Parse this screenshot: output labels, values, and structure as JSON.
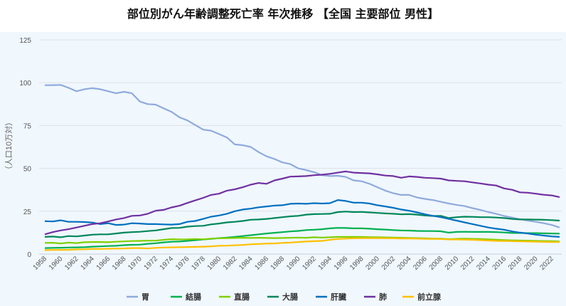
{
  "chart_data": {
    "type": "line",
    "title": "部位別がん年齢調整死亡率 年次推移 【全国 主要部位 男性】",
    "ylabel": "（人口10万対）",
    "xlabel": "",
    "ylim": [
      0,
      125
    ],
    "yticks": [
      0,
      25,
      50,
      75,
      100,
      125
    ],
    "x_start": 1958,
    "x_end": 2023,
    "xtick_labels": [
      "1958",
      "1960",
      "1962",
      "1964",
      "1966",
      "1968",
      "1970",
      "1972",
      "1974",
      "1976",
      "1978",
      "1980",
      "1982",
      "1984",
      "1986",
      "1988",
      "1990",
      "1992",
      "1994",
      "1996",
      "1998",
      "2000",
      "2002",
      "2004",
      "2006",
      "2008",
      "2010",
      "2012",
      "2014",
      "2016",
      "2018",
      "2020",
      "2022"
    ],
    "grid": true,
    "legend_position": "bottom",
    "series": [
      {
        "name": "胃",
        "color": "#8faadc",
        "values": [
          98.5,
          98.6,
          98.7,
          97,
          95,
          96.2,
          96.8,
          96.2,
          95,
          93.8,
          94.7,
          93.8,
          89,
          87.5,
          87.2,
          85,
          83,
          79.8,
          78,
          75.3,
          72.6,
          72,
          70,
          68,
          64,
          63.5,
          62.5,
          59.5,
          57,
          55.5,
          53.5,
          52.5,
          50,
          49,
          47.8,
          46,
          45.5,
          45.7,
          45,
          43,
          42.5,
          41,
          39,
          37,
          35.5,
          34.5,
          34.5,
          33,
          32.2,
          31.5,
          30.5,
          29.5,
          28.7,
          28,
          26.8,
          25.8,
          24.5,
          23.5,
          22.2,
          21.3,
          20.3,
          19.5,
          18.8,
          18,
          17,
          15.5
        ]
      },
      {
        "name": "結腸",
        "color": "#00b050",
        "values": [
          3.5,
          3.6,
          3.7,
          3.8,
          3.9,
          4.0,
          4.3,
          4.5,
          4.7,
          4.8,
          5.2,
          5.4,
          5.5,
          6,
          6.3,
          6.8,
          7.2,
          7.3,
          7.7,
          8.1,
          8.5,
          8.9,
          9.3,
          9.6,
          10,
          10.5,
          11,
          11.5,
          12,
          12.4,
          12.8,
          13.2,
          13.5,
          14,
          14.2,
          14.5,
          15,
          15.3,
          15.2,
          15,
          15,
          14.8,
          14.5,
          14.3,
          14,
          13.8,
          13.7,
          13.5,
          13.4,
          13.4,
          13.3,
          12.5,
          12.9,
          13,
          12.9,
          12.9,
          12.9,
          12.8,
          12.6,
          12.3,
          12.3,
          12.2,
          12.2,
          12.1,
          12,
          11.9
        ]
      },
      {
        "name": "直腸",
        "color": "#7fd000",
        "values": [
          6.5,
          6.6,
          6.2,
          6.7,
          6.4,
          6.9,
          7,
          7,
          6.9,
          7.2,
          7.4,
          7.6,
          7.7,
          7.8,
          7.8,
          8.3,
          8.7,
          8.5,
          8.6,
          8.8,
          8.6,
          9,
          9.2,
          9.3,
          9.4,
          9.5,
          9.4,
          9.5,
          9.4,
          9.3,
          9.4,
          9.5,
          9.6,
          9.5,
          9.8,
          9.6,
          9.8,
          10,
          10,
          10,
          10,
          9.9,
          9.8,
          9.7,
          9.6,
          9.5,
          9.4,
          9.3,
          9.2,
          9,
          9,
          8.7,
          8.9,
          9,
          8.9,
          8.8,
          8.6,
          8.4,
          8.2,
          8,
          7.9,
          7.8,
          7.7,
          7.6,
          7.5,
          7.4
        ]
      },
      {
        "name": "大腸",
        "color": "#00875a",
        "values": [
          10,
          10.2,
          9.8,
          10.5,
          10.3,
          10.8,
          11.3,
          11.5,
          11.5,
          12,
          12.5,
          12.8,
          13,
          13.4,
          13.8,
          14.5,
          15.2,
          15.3,
          16,
          16.3,
          16.5,
          17.3,
          17.8,
          18.5,
          18.8,
          19.3,
          20,
          20.2,
          20.5,
          21,
          21.5,
          22,
          22.3,
          23,
          23.3,
          23.4,
          23.5,
          24.5,
          24.8,
          24.5,
          24.6,
          24.3,
          24,
          23.7,
          23.5,
          23.2,
          23.3,
          23,
          22.5,
          22.2,
          22.3,
          21,
          21.5,
          21.8,
          21.7,
          21.5,
          21.5,
          21.3,
          21,
          20.5,
          20.2,
          20.2,
          20.1,
          20,
          19.8,
          19.5
        ]
      },
      {
        "name": "肝臓",
        "color": "#0070c0",
        "values": [
          19.2,
          19,
          19.7,
          18.8,
          18.8,
          18.7,
          18.4,
          17.5,
          18,
          17,
          17.2,
          18,
          17.8,
          17.5,
          17.5,
          17.3,
          17.2,
          17.5,
          18.8,
          19.3,
          20.5,
          21.8,
          22.5,
          23.5,
          25,
          26,
          26.5,
          27.3,
          27.8,
          28.3,
          28.5,
          29.3,
          29.5,
          29.3,
          29.7,
          29.5,
          29.7,
          31.5,
          31,
          30,
          30,
          29.5,
          28.5,
          27.8,
          27,
          26,
          25.3,
          24.3,
          23.2,
          22.3,
          21.5,
          20.5,
          19.5,
          18.5,
          17.5,
          16.5,
          15.5,
          14.8,
          14.2,
          13.2,
          12.5,
          12,
          11.3,
          10.8,
          10.3,
          10
        ]
      },
      {
        "name": "肺",
        "color": "#7030a0",
        "values": [
          11.5,
          12.8,
          13.8,
          14.5,
          15.5,
          16.5,
          17.5,
          18,
          19,
          20.2,
          21,
          22.3,
          22.5,
          23.5,
          25.3,
          25.8,
          27.2,
          28.2,
          29.8,
          31.3,
          32.8,
          34.5,
          35.2,
          37,
          37.8,
          39,
          40.5,
          41.5,
          41,
          43,
          44,
          45.2,
          45.3,
          45.5,
          46,
          46.3,
          46.8,
          47.5,
          48.2,
          47.5,
          47.3,
          47.1,
          46.5,
          45.8,
          45.5,
          44.5,
          45.3,
          45,
          44.5,
          44.3,
          44,
          43,
          42.7,
          42.5,
          41.8,
          41.2,
          40.5,
          40,
          38.3,
          37.5,
          36,
          35.8,
          35.2,
          34.6,
          34.2,
          33.2
        ]
      },
      {
        "name": "前立腺",
        "color": "#ffc000",
        "values": [
          2.3,
          2.4,
          2.4,
          2.5,
          2.7,
          2.8,
          3,
          3,
          3.1,
          3.2,
          3.3,
          3.5,
          3.5,
          3.3,
          3.6,
          3.8,
          3.9,
          4,
          4.1,
          4.2,
          4.3,
          4.5,
          4.8,
          4.9,
          5.1,
          5.3,
          5.7,
          5.9,
          6.1,
          6.2,
          6.5,
          6.7,
          7,
          7.3,
          7.5,
          7.7,
          8.3,
          8.8,
          9,
          9.2,
          9.3,
          9.3,
          9.3,
          9.2,
          9.2,
          9.1,
          9.1,
          9,
          8.9,
          8.8,
          8.8,
          8.5,
          8.5,
          8.4,
          8.3,
          8.1,
          7.9,
          7.7,
          7.6,
          7.5,
          7.4,
          7.3,
          7.2,
          7.1,
          7,
          7
        ]
      }
    ]
  }
}
